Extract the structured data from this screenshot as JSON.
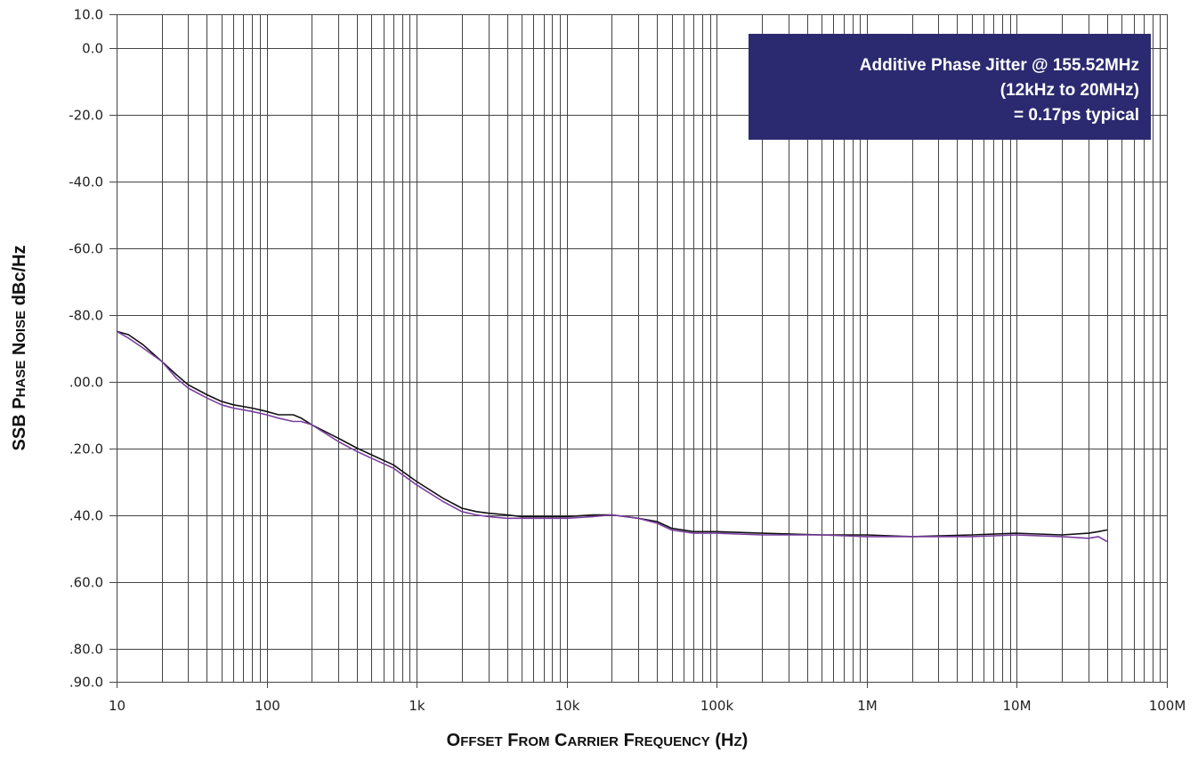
{
  "chart_data": {
    "type": "line",
    "xscale": "log",
    "xlim": [
      10,
      100000000
    ],
    "ylim": [
      -190,
      10
    ],
    "ylabel": {
      "parts": [
        {
          "text": "SSB P",
          "small": false
        },
        {
          "text": "HASE",
          "small": true
        },
        {
          "text": " N",
          "small": false
        },
        {
          "text": "OISE",
          "small": true
        },
        {
          "text": " dBc/Hz",
          "small": false
        }
      ]
    },
    "xlabel": {
      "parts": [
        {
          "text": "O",
          "small": false
        },
        {
          "text": "FFSET",
          "small": true
        },
        {
          "text": " F",
          "small": false
        },
        {
          "text": "ROM",
          "small": true
        },
        {
          "text": " C",
          "small": false
        },
        {
          "text": "ARRIER",
          "small": true
        },
        {
          "text": " F",
          "small": false
        },
        {
          "text": "REQUENCY",
          "small": true
        },
        {
          "text": " (H",
          "small": false
        },
        {
          "text": "Z",
          "small": true
        },
        {
          "text": ")",
          "small": false
        }
      ]
    },
    "yticks": [
      {
        "value": 10,
        "label": "10.0"
      },
      {
        "value": 0,
        "label": "0.0"
      },
      {
        "value": -20,
        "label": "-20.0"
      },
      {
        "value": -40,
        "label": "-40.0"
      },
      {
        "value": -60,
        "label": "-60.0"
      },
      {
        "value": -80,
        "label": "-80.0"
      },
      {
        "value": -100,
        "label": ".00.0"
      },
      {
        "value": -120,
        "label": ".20.0"
      },
      {
        "value": -140,
        "label": ".40.0"
      },
      {
        "value": -160,
        "label": ".60.0"
      },
      {
        "value": -180,
        "label": ".80.0"
      },
      {
        "value": -190,
        "label": ".90.0"
      }
    ],
    "xticks": [
      {
        "value": 10,
        "label": "10"
      },
      {
        "value": 100,
        "label": "100"
      },
      {
        "value": 1000,
        "label": "1k"
      },
      {
        "value": 10000,
        "label": "10k"
      },
      {
        "value": 100000,
        "label": "100k"
      },
      {
        "value": 1000000,
        "label": "1M"
      },
      {
        "value": 10000000,
        "label": "10M"
      },
      {
        "value": 100000000,
        "label": "100M"
      }
    ],
    "grid": true,
    "annotation": {
      "lines": [
        "Additive Phase Jitter @ 155.52MHz",
        "(12kHz to 20MHz)",
        "= 0.17ps typical"
      ],
      "background": "#2b2a70",
      "position": "top-right"
    },
    "series": [
      {
        "color": "#111111",
        "x": [
          10,
          12,
          15,
          20,
          25,
          30,
          40,
          50,
          60,
          80,
          100,
          120,
          150,
          170,
          200,
          300,
          400,
          500,
          700,
          1000,
          1500,
          2000,
          2500,
          3000,
          4000,
          5000,
          7000,
          10000,
          15000,
          20000,
          30000,
          40000,
          50000,
          70000,
          100000,
          200000,
          500000,
          1000000,
          2000000,
          5000000,
          10000000,
          20000000,
          30000000,
          35000000,
          40000000
        ],
        "y": [
          -85,
          -86,
          -89,
          -94,
          -98,
          -101,
          -104,
          -106,
          -107,
          -108,
          -109,
          -110,
          -110,
          -111,
          -113,
          -117,
          -120,
          -122,
          -125,
          -130,
          -135,
          -138,
          -139,
          -139.5,
          -140,
          -140.5,
          -140.5,
          -140.5,
          -140,
          -140,
          -141,
          -142,
          -144,
          -145,
          -145,
          -145.5,
          -146,
          -146,
          -146.5,
          -146,
          -145.5,
          -146,
          -145.5,
          -145,
          -144.5
        ]
      },
      {
        "color": "#7a3fa0",
        "x": [
          10,
          12,
          15,
          20,
          25,
          30,
          40,
          50,
          60,
          80,
          100,
          120,
          150,
          170,
          200,
          300,
          400,
          500,
          700,
          1000,
          1500,
          2000,
          2500,
          3000,
          4000,
          5000,
          7000,
          10000,
          15000,
          20000,
          30000,
          40000,
          50000,
          70000,
          100000,
          200000,
          500000,
          1000000,
          2000000,
          5000000,
          10000000,
          20000000,
          30000000,
          35000000,
          40000000
        ],
        "y": [
          -85,
          -87,
          -90,
          -94,
          -99,
          -102,
          -105,
          -107,
          -108,
          -109,
          -110,
          -111,
          -112,
          -112,
          -113,
          -118,
          -121,
          -123,
          -126,
          -131,
          -136,
          -139,
          -140,
          -140.5,
          -141,
          -141,
          -141,
          -141,
          -140.5,
          -140,
          -141,
          -142.5,
          -144.5,
          -145.5,
          -145.5,
          -146,
          -146,
          -146.5,
          -146.5,
          -146.5,
          -146,
          -146.5,
          -147,
          -146.5,
          -148
        ]
      }
    ]
  }
}
